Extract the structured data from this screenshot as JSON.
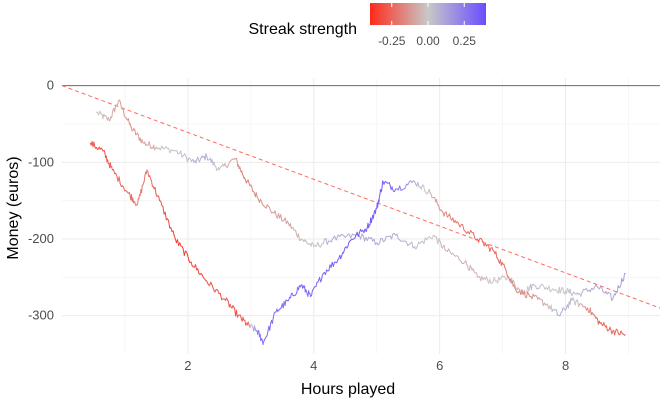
{
  "chart_data": {
    "type": "line",
    "xlabel": "Hours played",
    "ylabel": "Money (euros)",
    "xlim": [
      0,
      9.5
    ],
    "ylim": [
      -350,
      10
    ],
    "x_ticks": [
      2,
      4,
      6,
      8
    ],
    "y_ticks": [
      0,
      -100,
      -200,
      -300
    ],
    "grid": true,
    "reference_line": {
      "type": "horizontal",
      "y": 0,
      "color": "#6e6e6e"
    },
    "trend_line": {
      "from": [
        0,
        0
      ],
      "to": [
        9.5,
        -290
      ],
      "style": "dashed",
      "color": "#ff6b5e"
    },
    "legend": {
      "title": "Streak strength",
      "position": "top",
      "type": "colorbar",
      "min": -0.4,
      "max": 0.4,
      "ticks": [
        -0.25,
        0.0,
        0.25
      ],
      "tick_labels": [
        "-0.25",
        "0.00",
        "0.25"
      ],
      "colors": {
        "low": "#ff2a1a",
        "mid": "#c8c8c8",
        "high": "#6b4cff"
      }
    },
    "series": [
      {
        "points": [
          {
            "x": 0.55,
            "y": -35,
            "s": 0.0
          },
          {
            "x": 0.75,
            "y": -45,
            "s": -0.05
          },
          {
            "x": 0.9,
            "y": -20,
            "s": -0.1
          },
          {
            "x": 1.1,
            "y": -55,
            "s": -0.15
          },
          {
            "x": 1.3,
            "y": -75,
            "s": -0.1
          },
          {
            "x": 1.5,
            "y": -80,
            "s": -0.05
          },
          {
            "x": 1.8,
            "y": -85,
            "s": 0.02
          },
          {
            "x": 2.1,
            "y": -100,
            "s": 0.05
          },
          {
            "x": 2.3,
            "y": -92,
            "s": 0.08
          },
          {
            "x": 2.5,
            "y": -110,
            "s": 0.0
          },
          {
            "x": 2.75,
            "y": -95,
            "s": -0.1
          },
          {
            "x": 2.9,
            "y": -120,
            "s": -0.2
          },
          {
            "x": 3.1,
            "y": -145,
            "s": -0.15
          },
          {
            "x": 3.35,
            "y": -165,
            "s": -0.1
          },
          {
            "x": 3.6,
            "y": -180,
            "s": -0.1
          },
          {
            "x": 3.8,
            "y": -200,
            "s": -0.05
          },
          {
            "x": 4.0,
            "y": -210,
            "s": 0.0
          },
          {
            "x": 4.3,
            "y": -200,
            "s": 0.1
          },
          {
            "x": 4.7,
            "y": -195,
            "s": 0.1
          },
          {
            "x": 5.0,
            "y": -205,
            "s": 0.1
          },
          {
            "x": 5.3,
            "y": -195,
            "s": 0.1
          },
          {
            "x": 5.6,
            "y": -210,
            "s": 0.05
          },
          {
            "x": 5.9,
            "y": -195,
            "s": 0.0
          },
          {
            "x": 6.1,
            "y": -215,
            "s": -0.05
          },
          {
            "x": 6.4,
            "y": -230,
            "s": -0.05
          },
          {
            "x": 6.6,
            "y": -250,
            "s": -0.05
          },
          {
            "x": 6.85,
            "y": -255,
            "s": 0.0
          },
          {
            "x": 7.1,
            "y": -250,
            "s": 0.0
          },
          {
            "x": 7.3,
            "y": -270,
            "s": -0.05
          },
          {
            "x": 7.5,
            "y": -260,
            "s": 0.05
          },
          {
            "x": 7.8,
            "y": -265,
            "s": 0.0
          },
          {
            "x": 8.0,
            "y": -268,
            "s": 0.02
          },
          {
            "x": 8.2,
            "y": -272,
            "s": 0.05
          },
          {
            "x": 8.5,
            "y": -262,
            "s": 0.1
          },
          {
            "x": 8.75,
            "y": -278,
            "s": 0.1
          },
          {
            "x": 8.95,
            "y": -245,
            "s": 0.15
          }
        ]
      },
      {
        "points": [
          {
            "x": 0.45,
            "y": -75,
            "s": -0.3
          },
          {
            "x": 0.65,
            "y": -85,
            "s": -0.3
          },
          {
            "x": 0.8,
            "y": -110,
            "s": -0.25
          },
          {
            "x": 1.05,
            "y": -140,
            "s": -0.25
          },
          {
            "x": 1.2,
            "y": -155,
            "s": -0.2
          },
          {
            "x": 1.35,
            "y": -110,
            "s": -0.2
          },
          {
            "x": 1.55,
            "y": -150,
            "s": -0.3
          },
          {
            "x": 1.8,
            "y": -200,
            "s": -0.35
          },
          {
            "x": 2.05,
            "y": -230,
            "s": -0.35
          },
          {
            "x": 2.3,
            "y": -255,
            "s": -0.3
          },
          {
            "x": 2.6,
            "y": -280,
            "s": -0.3
          },
          {
            "x": 2.8,
            "y": -300,
            "s": -0.3
          },
          {
            "x": 2.95,
            "y": -312,
            "s": -0.25
          },
          {
            "x": 3.1,
            "y": -320,
            "s": 0.25
          },
          {
            "x": 3.2,
            "y": -335,
            "s": 0.3
          },
          {
            "x": 3.4,
            "y": -295,
            "s": 0.3
          },
          {
            "x": 3.6,
            "y": -280,
            "s": 0.3
          },
          {
            "x": 3.8,
            "y": -260,
            "s": 0.3
          },
          {
            "x": 3.95,
            "y": -275,
            "s": 0.3
          },
          {
            "x": 4.15,
            "y": -245,
            "s": 0.32
          },
          {
            "x": 4.4,
            "y": -225,
            "s": 0.35
          },
          {
            "x": 4.6,
            "y": -200,
            "s": 0.35
          },
          {
            "x": 4.85,
            "y": -185,
            "s": 0.35
          },
          {
            "x": 5.0,
            "y": -160,
            "s": 0.35
          },
          {
            "x": 5.1,
            "y": -125,
            "s": 0.35
          },
          {
            "x": 5.3,
            "y": -135,
            "s": 0.3
          },
          {
            "x": 5.6,
            "y": -125,
            "s": 0.1
          },
          {
            "x": 5.85,
            "y": -140,
            "s": -0.05
          },
          {
            "x": 6.05,
            "y": -165,
            "s": -0.15
          },
          {
            "x": 6.3,
            "y": -180,
            "s": -0.2
          },
          {
            "x": 6.6,
            "y": -200,
            "s": -0.25
          },
          {
            "x": 6.85,
            "y": -215,
            "s": -0.25
          },
          {
            "x": 7.05,
            "y": -240,
            "s": -0.2
          },
          {
            "x": 7.2,
            "y": -265,
            "s": -0.15
          },
          {
            "x": 7.45,
            "y": -275,
            "s": -0.15
          },
          {
            "x": 7.7,
            "y": -285,
            "s": -0.05
          },
          {
            "x": 7.9,
            "y": -300,
            "s": 0.1
          },
          {
            "x": 8.1,
            "y": -280,
            "s": 0.05
          },
          {
            "x": 8.35,
            "y": -290,
            "s": -0.15
          },
          {
            "x": 8.55,
            "y": -310,
            "s": -0.25
          },
          {
            "x": 8.75,
            "y": -320,
            "s": -0.25
          },
          {
            "x": 8.95,
            "y": -325,
            "s": -0.25
          }
        ]
      }
    ]
  }
}
